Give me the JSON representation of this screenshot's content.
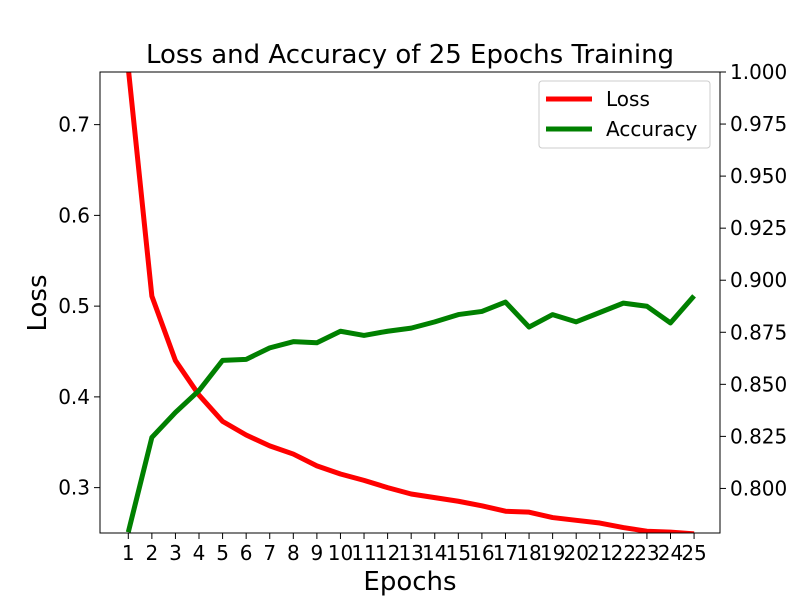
{
  "chart_data": {
    "type": "line",
    "title": "Loss and Accuracy of 25 Epochs Training",
    "xlabel": "Epochs",
    "ylabel": "Loss",
    "y2label": "",
    "x": [
      1,
      2,
      3,
      4,
      5,
      6,
      7,
      8,
      9,
      10,
      11,
      12,
      13,
      14,
      15,
      16,
      17,
      18,
      19,
      20,
      21,
      22,
      23,
      24,
      25
    ],
    "x_tick_labels": [
      "1",
      "2",
      "3",
      "4",
      "5",
      "6",
      "7",
      "8",
      "9",
      "10",
      "11",
      "12",
      "13",
      "14",
      "15",
      "16",
      "17",
      "18",
      "19",
      "20",
      "21",
      "22",
      "23",
      "24",
      "25"
    ],
    "xlim": [
      -0.2,
      26.1
    ],
    "ylim": [
      0.25,
      0.758
    ],
    "y2lim": [
      0.7786,
      1.0
    ],
    "y_ticks": [
      0.3,
      0.4,
      0.5,
      0.6,
      0.7
    ],
    "y_tick_labels": [
      "0.3",
      "0.4",
      "0.5",
      "0.6",
      "0.7"
    ],
    "y2_ticks": [
      0.8,
      0.825,
      0.85,
      0.875,
      0.9,
      0.925,
      0.95,
      0.975,
      1.0
    ],
    "y2_tick_labels": [
      "0.800",
      "0.825",
      "0.850",
      "0.875",
      "0.900",
      "0.925",
      "0.950",
      "0.975",
      "1.000"
    ],
    "grid": false,
    "legend_position": "top-right",
    "series": [
      {
        "name": "Loss",
        "axis": "left",
        "color": "#ff0000",
        "values": [
          0.762,
          0.511,
          0.44,
          0.402,
          0.373,
          0.358,
          0.346,
          0.337,
          0.324,
          0.315,
          0.308,
          0.3,
          0.293,
          0.289,
          0.285,
          0.28,
          0.274,
          0.273,
          0.267,
          0.264,
          0.261,
          0.256,
          0.252,
          0.251,
          0.249
        ]
      },
      {
        "name": "Accuracy",
        "axis": "right",
        "color": "#008000",
        "values": [
          0.779,
          0.8245,
          0.8365,
          0.847,
          0.8615,
          0.862,
          0.8675,
          0.8705,
          0.87,
          0.8755,
          0.8735,
          0.8755,
          0.877,
          0.88,
          0.8835,
          0.885,
          0.8895,
          0.8775,
          0.8835,
          0.88,
          0.8845,
          0.889,
          0.8875,
          0.8795,
          0.8925
        ]
      }
    ]
  }
}
